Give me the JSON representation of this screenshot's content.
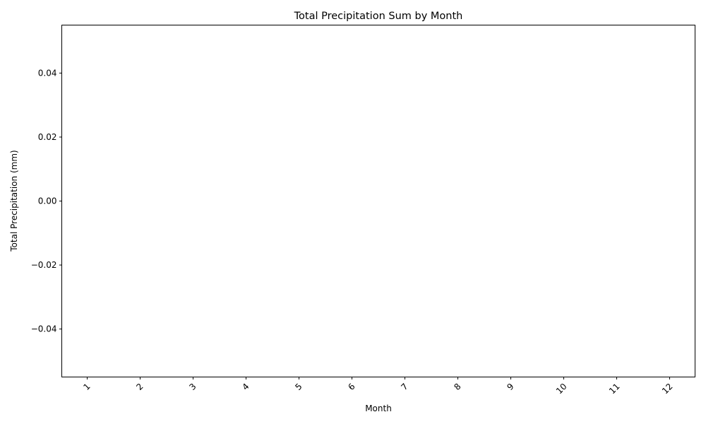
{
  "chart_data": {
    "type": "bar",
    "title": "Total Precipitation Sum by Month",
    "xlabel": "Month",
    "ylabel": "Total Precipitation (mm)",
    "categories": [
      "1",
      "2",
      "3",
      "4",
      "5",
      "6",
      "7",
      "8",
      "9",
      "10",
      "11",
      "12"
    ],
    "values": [
      0,
      0,
      0,
      0,
      0,
      0,
      0,
      0,
      0,
      0,
      0,
      0
    ],
    "ylim": [
      -0.055,
      0.055
    ],
    "yticks": [
      -0.04,
      -0.02,
      0.0,
      0.02,
      0.04
    ],
    "ytick_labels": [
      "−0.04",
      "−0.02",
      "0.00",
      "0.02",
      "0.04"
    ],
    "xtick_rotation_deg": 45,
    "grid": false,
    "legend": "none",
    "colors": {
      "bar": "#1f77b4",
      "axes": "#000000",
      "background": "#ffffff"
    }
  }
}
